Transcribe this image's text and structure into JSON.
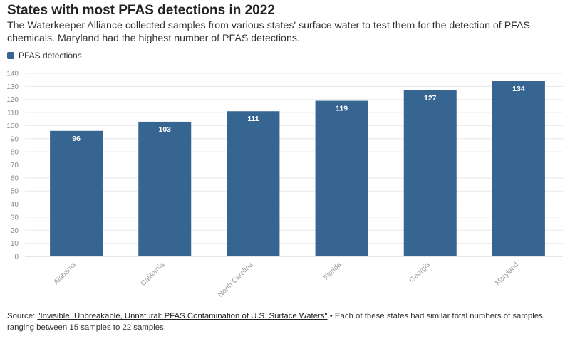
{
  "title": "States with most PFAS detections in 2022",
  "subtitle": "The Waterkeeper Alliance collected samples from various states' surface water to test them for the detection of PFAS chemicals. Maryland had the highest number of PFAS detections.",
  "legend": {
    "label": "PFAS detections",
    "color": "#376592"
  },
  "source": {
    "prefix": "Source: ",
    "link_text": "\"Invisible, Unbreakable, Unnatural: PFAS Contamination of U.S. Surface Waters\"",
    "note": " • Each of these states had similar total numbers of samples, ranging between 15 samples to 22 samples."
  },
  "chart_data": {
    "type": "bar",
    "categories": [
      "Alabama",
      "California",
      "North Carolina",
      "Florida",
      "Georgia",
      "Maryland"
    ],
    "series": [
      {
        "name": "PFAS detections",
        "values": [
          96,
          103,
          111,
          119,
          127,
          134
        ],
        "color": "#376592"
      }
    ],
    "ylim": [
      0,
      140
    ],
    "yticks": [
      0,
      10,
      20,
      30,
      40,
      50,
      60,
      70,
      80,
      90,
      100,
      110,
      120,
      130,
      140
    ],
    "grid": true,
    "legend_position": "top-left",
    "xlabel": "",
    "ylabel": ""
  }
}
